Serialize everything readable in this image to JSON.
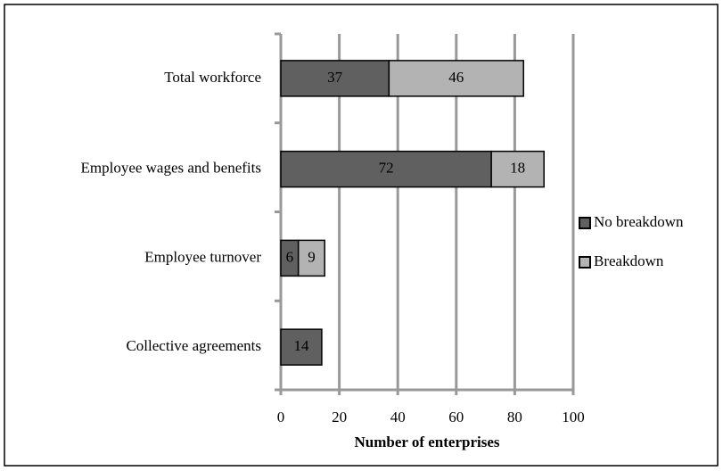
{
  "chart_data": {
    "type": "stacked_barh",
    "categories": [
      "Total workforce",
      "Employee wages and benefits",
      "Employee turnover",
      "Collective agreements"
    ],
    "series": [
      {
        "name": "No breakdown",
        "color": "#606060",
        "values": [
          37,
          72,
          6,
          14
        ]
      },
      {
        "name": "Breakdown",
        "color": "#b3b3b3",
        "values": [
          46,
          18,
          9,
          null
        ]
      }
    ],
    "xlim": [
      0,
      100
    ],
    "xticks": [
      0,
      20,
      40,
      60,
      80,
      100
    ],
    "xlabel": "Number of enterprises",
    "grid": true,
    "legend": "right"
  }
}
